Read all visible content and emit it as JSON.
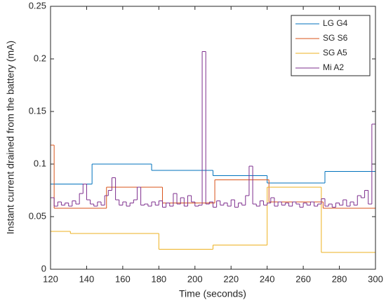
{
  "chart_data": {
    "type": "stairs",
    "xlabel": "Time (seconds)",
    "ylabel": "Instant current drained from the battery (mA)",
    "xlim": [
      120,
      300
    ],
    "ylim": [
      0,
      0.25
    ],
    "xticks": [
      120,
      140,
      160,
      180,
      200,
      220,
      240,
      260,
      280,
      300
    ],
    "yticks": [
      0,
      0.05,
      0.1,
      0.15,
      0.2,
      0.25
    ],
    "legend": "upper right",
    "grid": false,
    "series": [
      {
        "name": "LG G4",
        "color": "#0072bd",
        "x": [
          120,
          143,
          176,
          210,
          240,
          272,
          300
        ],
        "values": [
          0.081,
          0.1,
          0.094,
          0.089,
          0.082,
          0.093,
          0.093
        ]
      },
      {
        "name": "SG S6",
        "color": "#d95319",
        "x": [
          120,
          122,
          151,
          182,
          211,
          241,
          271,
          300
        ],
        "values": [
          0.118,
          0.058,
          0.078,
          0.063,
          0.085,
          0.064,
          0.058,
          0.058
        ]
      },
      {
        "name": "SG A5",
        "color": "#edb120",
        "x": [
          120,
          131,
          180,
          210,
          240,
          270,
          300
        ],
        "values": [
          0.036,
          0.034,
          0.019,
          0.023,
          0.078,
          0.016,
          0
        ]
      },
      {
        "name": "Mi A2",
        "color": "#7e2f8e",
        "x": [
          120,
          122,
          124,
          126,
          128,
          130,
          132,
          134,
          136,
          138,
          140,
          142,
          144,
          146,
          148,
          150,
          152,
          154,
          156,
          158,
          160,
          162,
          164,
          166,
          168,
          170,
          172,
          174,
          176,
          178,
          180,
          182,
          184,
          186,
          188,
          190,
          192,
          194,
          196,
          198,
          200,
          202,
          204,
          206,
          208,
          210,
          212,
          214,
          216,
          218,
          220,
          222,
          224,
          226,
          228,
          230,
          232,
          234,
          236,
          238,
          240,
          242,
          244,
          246,
          248,
          250,
          252,
          254,
          256,
          258,
          260,
          262,
          264,
          266,
          268,
          270,
          272,
          274,
          276,
          278,
          280,
          282,
          284,
          286,
          288,
          290,
          292,
          294,
          296,
          298,
          300
        ],
        "values": [
          0.068,
          0.06,
          0.064,
          0.061,
          0.063,
          0.06,
          0.065,
          0.062,
          0.072,
          0.081,
          0.066,
          0.062,
          0.06,
          0.064,
          0.061,
          0.07,
          0.075,
          0.087,
          0.066,
          0.061,
          0.064,
          0.06,
          0.063,
          0.066,
          0.078,
          0.061,
          0.062,
          0.06,
          0.064,
          0.061,
          0.065,
          0.059,
          0.063,
          0.06,
          0.072,
          0.062,
          0.068,
          0.06,
          0.07,
          0.064,
          0.06,
          0.061,
          0.207,
          0.062,
          0.064,
          0.059,
          0.065,
          0.061,
          0.063,
          0.06,
          0.066,
          0.059,
          0.063,
          0.061,
          0.07,
          0.098,
          0.062,
          0.06,
          0.065,
          0.061,
          0.063,
          0.068,
          0.06,
          0.064,
          0.061,
          0.063,
          0.06,
          0.064,
          0.062,
          0.059,
          0.063,
          0.061,
          0.064,
          0.06,
          0.062,
          0.067,
          0.06,
          0.062,
          0.059,
          0.063,
          0.061,
          0.066,
          0.06,
          0.064,
          0.061,
          0.07,
          0.068,
          0.075,
          0.062,
          0.138,
          0.138
        ]
      }
    ]
  }
}
